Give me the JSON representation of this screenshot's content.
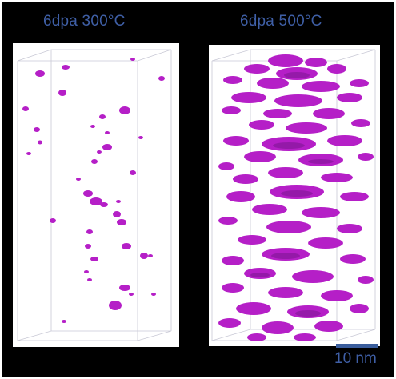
{
  "panels": {
    "left": {
      "title": "6dpa 300°C"
    },
    "right": {
      "title": "6dpa 500°C"
    }
  },
  "scalebar": {
    "label": "10 nm"
  },
  "colors": {
    "background": "#000000",
    "title": "#3f5fa6",
    "precipitate": "#b51fc7",
    "scalebar": "#3a5d9c"
  }
}
